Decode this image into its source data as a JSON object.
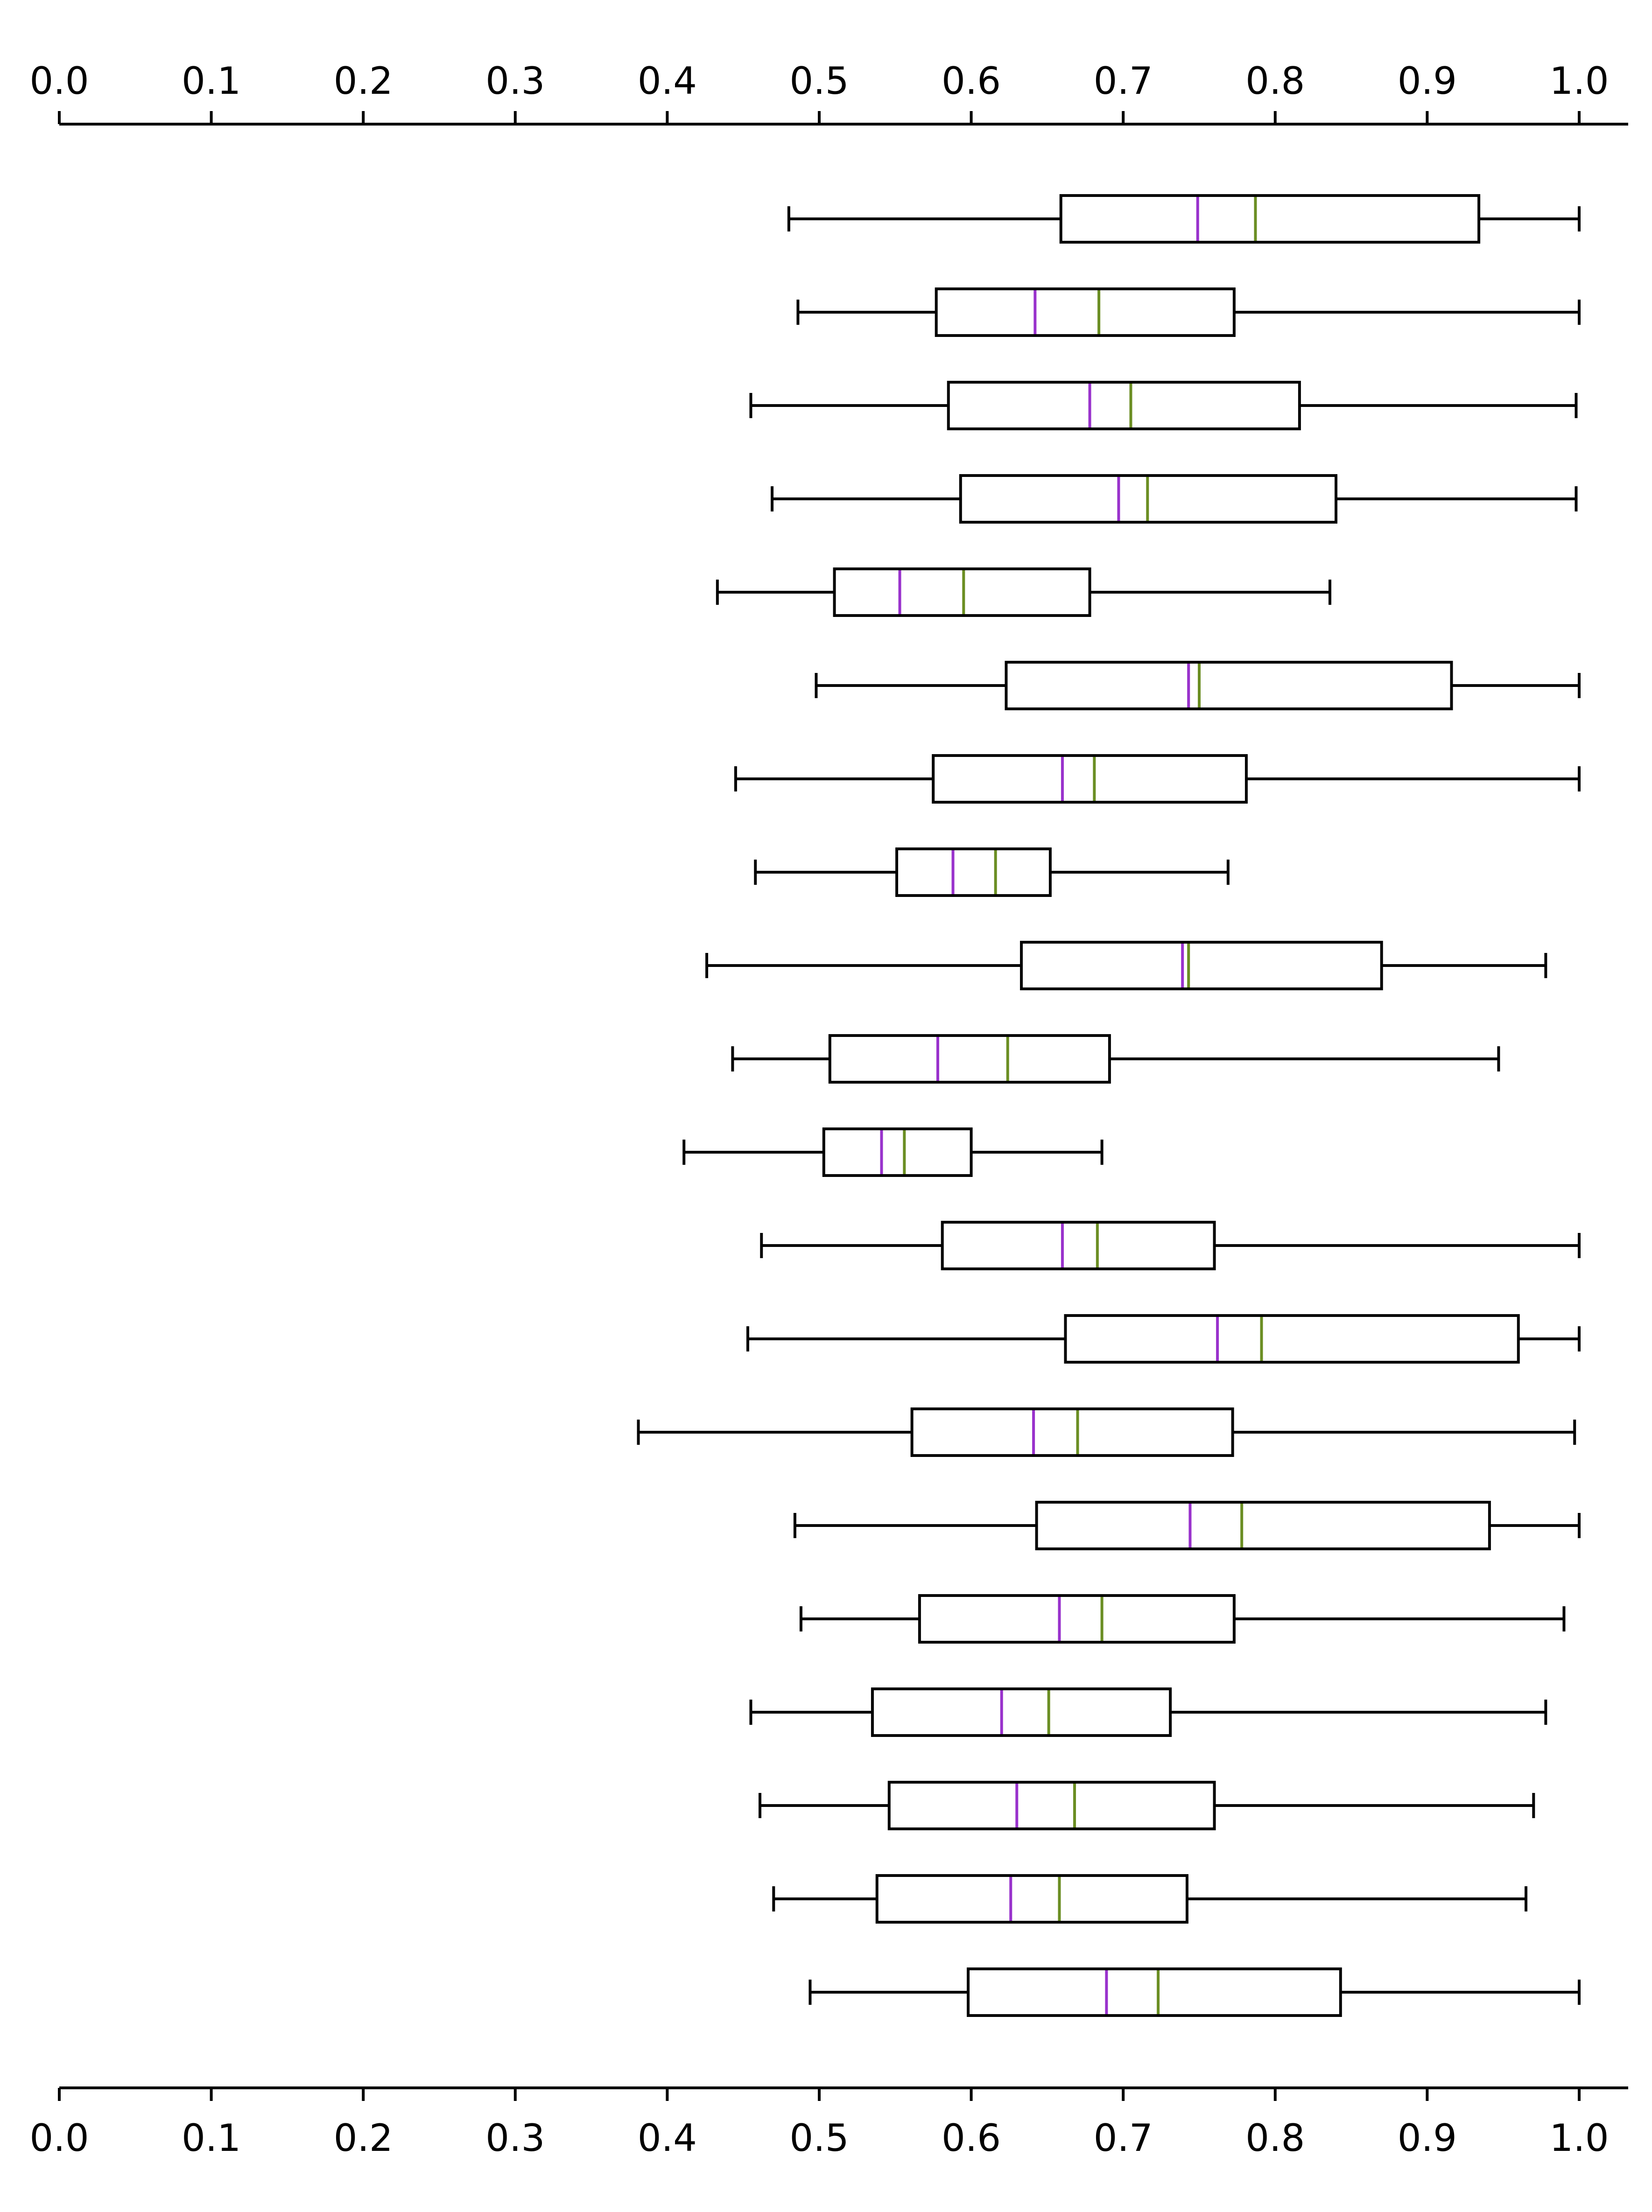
{
  "chart_data": {
    "type": "boxplot",
    "orientation": "horizontal",
    "title": "",
    "xlabel": "",
    "ylabel": "",
    "xlim": [
      0.0,
      1.0
    ],
    "x_ticks": [
      "0.0",
      "0.1",
      "0.2",
      "0.3",
      "0.4",
      "0.5",
      "0.6",
      "0.7",
      "0.8",
      "0.9",
      "1.0"
    ],
    "x_axis_positions": [
      "top",
      "bottom"
    ],
    "y_axis_visible": false,
    "grid": false,
    "legend": "none",
    "colors": {
      "box": "#000000",
      "whisker": "#000000",
      "median": "#9932CC",
      "mean": "#6B8E23"
    },
    "boxes": [
      {
        "whislo": 0.48,
        "q1": 0.659,
        "median": 0.749,
        "mean": 0.787,
        "q3": 0.934,
        "whishi": 1.0
      },
      {
        "whislo": 0.486,
        "q1": 0.577,
        "median": 0.642,
        "mean": 0.684,
        "q3": 0.773,
        "whishi": 1.0
      },
      {
        "whislo": 0.455,
        "q1": 0.585,
        "median": 0.678,
        "mean": 0.705,
        "q3": 0.816,
        "whishi": 0.998
      },
      {
        "whislo": 0.469,
        "q1": 0.593,
        "median": 0.697,
        "mean": 0.716,
        "q3": 0.84,
        "whishi": 0.998
      },
      {
        "whislo": 0.433,
        "q1": 0.51,
        "median": 0.553,
        "mean": 0.595,
        "q3": 0.678,
        "whishi": 0.836
      },
      {
        "whislo": 0.498,
        "q1": 0.623,
        "median": 0.743,
        "mean": 0.75,
        "q3": 0.916,
        "whishi": 1.0
      },
      {
        "whislo": 0.445,
        "q1": 0.575,
        "median": 0.66,
        "mean": 0.681,
        "q3": 0.781,
        "whishi": 1.0
      },
      {
        "whislo": 0.458,
        "q1": 0.551,
        "median": 0.588,
        "mean": 0.616,
        "q3": 0.652,
        "whishi": 0.769
      },
      {
        "whislo": 0.426,
        "q1": 0.633,
        "median": 0.739,
        "mean": 0.743,
        "q3": 0.87,
        "whishi": 0.978
      },
      {
        "whislo": 0.443,
        "q1": 0.507,
        "median": 0.578,
        "mean": 0.624,
        "q3": 0.691,
        "whishi": 0.947
      },
      {
        "whislo": 0.411,
        "q1": 0.503,
        "median": 0.541,
        "mean": 0.556,
        "q3": 0.6,
        "whishi": 0.686
      },
      {
        "whislo": 0.462,
        "q1": 0.581,
        "median": 0.66,
        "mean": 0.683,
        "q3": 0.76,
        "whishi": 1.0
      },
      {
        "whislo": 0.453,
        "q1": 0.662,
        "median": 0.762,
        "mean": 0.791,
        "q3": 0.96,
        "whishi": 1.0
      },
      {
        "whislo": 0.381,
        "q1": 0.561,
        "median": 0.641,
        "mean": 0.67,
        "q3": 0.772,
        "whishi": 0.997
      },
      {
        "whislo": 0.484,
        "q1": 0.643,
        "median": 0.744,
        "mean": 0.778,
        "q3": 0.941,
        "whishi": 1.0
      },
      {
        "whislo": 0.488,
        "q1": 0.566,
        "median": 0.658,
        "mean": 0.686,
        "q3": 0.773,
        "whishi": 0.99
      },
      {
        "whislo": 0.455,
        "q1": 0.535,
        "median": 0.62,
        "mean": 0.651,
        "q3": 0.731,
        "whishi": 0.978
      },
      {
        "whislo": 0.461,
        "q1": 0.546,
        "median": 0.63,
        "mean": 0.668,
        "q3": 0.76,
        "whishi": 0.97
      },
      {
        "whislo": 0.47,
        "q1": 0.538,
        "median": 0.626,
        "mean": 0.658,
        "q3": 0.742,
        "whishi": 0.965
      },
      {
        "whislo": 0.494,
        "q1": 0.598,
        "median": 0.689,
        "mean": 0.723,
        "q3": 0.843,
        "whishi": 1.0
      }
    ]
  }
}
